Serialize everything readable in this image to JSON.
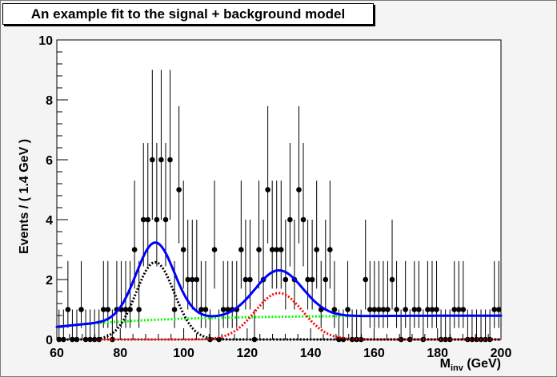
{
  "chart_data": {
    "type": "scatter",
    "title": "An example fit to the signal + background model",
    "xlabel": "M",
    "xlabel_sub": "inv",
    "xlabel_unit": " (GeV)",
    "ylabel": "Events / ( 1.4 GeV )",
    "xlim": [
      60,
      200
    ],
    "ylim": [
      0,
      10
    ],
    "x_ticks": [
      60,
      80,
      100,
      120,
      140,
      160,
      180,
      200
    ],
    "y_ticks": [
      0,
      2,
      4,
      6,
      8,
      10
    ],
    "grid": false,
    "data_points": {
      "name": "data",
      "x_start": 60.7,
      "bin_width": 1.4,
      "counts": [
        0,
        0,
        1,
        0,
        0,
        1,
        0,
        0,
        0,
        0,
        1,
        1,
        0,
        1,
        1,
        1,
        1,
        3,
        1,
        4,
        4,
        6,
        4,
        6,
        4,
        6,
        1,
        5,
        3,
        2,
        2,
        2,
        1,
        1,
        0,
        3,
        0,
        1,
        1,
        1,
        1,
        3,
        2,
        2,
        0,
        3,
        2,
        5,
        3,
        3,
        3,
        2,
        4,
        2,
        5,
        4,
        2,
        2,
        3,
        1,
        2,
        3,
        1,
        0,
        0,
        1,
        0,
        0,
        0,
        2,
        1,
        1,
        1,
        1,
        1,
        2,
        1,
        0,
        1,
        0,
        1,
        1,
        0,
        1,
        1,
        1,
        0,
        0,
        0,
        1,
        1,
        1,
        0,
        0,
        0,
        0,
        0,
        0,
        1,
        1
      ]
    },
    "series": [
      {
        "name": "total fit (signal + background)",
        "color": "#0000ff",
        "style": "solid",
        "peaks": [
          {
            "mean": 91,
            "sigma": 6,
            "amp": 2.58
          },
          {
            "mean": 130,
            "sigma": 7.5,
            "amp": 1.55
          }
        ],
        "background": {
          "a": 0.42,
          "b": 0.38,
          "tau": 32
        }
      },
      {
        "name": "signal peak 1",
        "color": "#000000",
        "style": "dotted",
        "mean": 91,
        "sigma": 6,
        "amp": 2.58
      },
      {
        "name": "signal peak 2",
        "color": "#ff0000",
        "style": "dotted",
        "mean": 130,
        "sigma": 7.5,
        "amp": 1.55
      },
      {
        "name": "background",
        "color": "#00ff00",
        "style": "dotted",
        "a": 0.42,
        "b": 0.38,
        "tau": 32
      }
    ]
  }
}
